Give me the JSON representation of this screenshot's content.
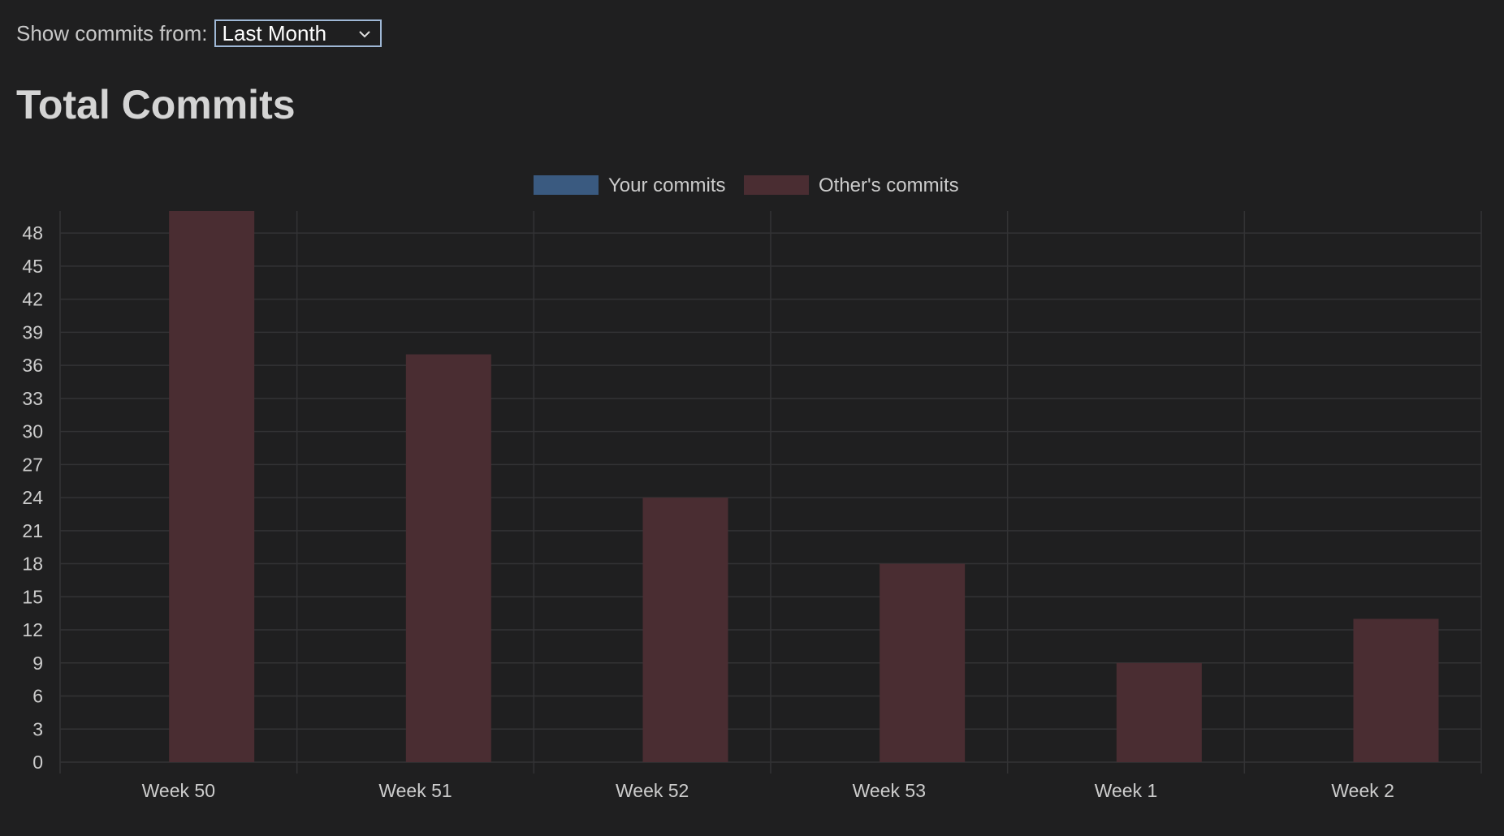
{
  "filter": {
    "label": "Show commits from:",
    "selected": "Last Month"
  },
  "page_title": "Total Commits",
  "colors": {
    "your_commits": "#3a5a80",
    "others_commits": "#4a2d32",
    "grid": "#333335",
    "text": "#cccccc"
  },
  "chart_data": {
    "type": "bar",
    "title": "",
    "xlabel": "",
    "ylabel": "",
    "categories": [
      "Week 50",
      "Week 51",
      "Week 52",
      "Week 53",
      "Week 1",
      "Week 2"
    ],
    "series": [
      {
        "name": "Your commits",
        "values": [
          0,
          0,
          0,
          0,
          0,
          0
        ]
      },
      {
        "name": "Other's commits",
        "values": [
          50,
          37,
          24,
          18,
          9,
          13
        ]
      }
    ],
    "ylim": [
      0,
      50
    ],
    "yticks": [
      0,
      3,
      6,
      9,
      12,
      15,
      18,
      21,
      24,
      27,
      30,
      33,
      36,
      39,
      42,
      45,
      48
    ],
    "legend": "top-center",
    "grid": true
  }
}
